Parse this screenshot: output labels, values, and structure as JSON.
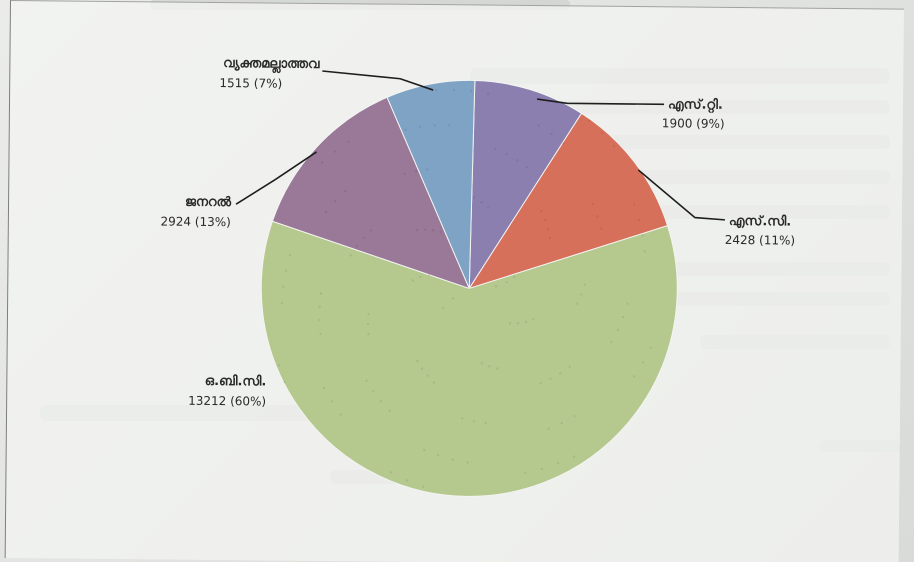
{
  "chart_data": {
    "type": "pie",
    "slices": [
      {
        "label": "എസ്.റ്റി.",
        "value": 1900,
        "percent": "9%",
        "color": "#8b7fb0"
      },
      {
        "label": "എസ്.സി.",
        "value": 2428,
        "percent": "11%",
        "color": "#d7705a"
      },
      {
        "label": "ഒ.ബി.സി.",
        "value": 13212,
        "percent": "60%",
        "color": "#b5c98f"
      },
      {
        "label": "ജനറൽ",
        "value": 2924,
        "percent": "13%",
        "color": "#9a7897"
      },
      {
        "label": "വ്യക്തമല്ലാത്തവ",
        "value": 1515,
        "percent": "7%",
        "color": "#7fa3c4"
      }
    ],
    "start_angle_deg": 1,
    "direction": "clockwise",
    "label_format": "{value} ({percent})"
  }
}
